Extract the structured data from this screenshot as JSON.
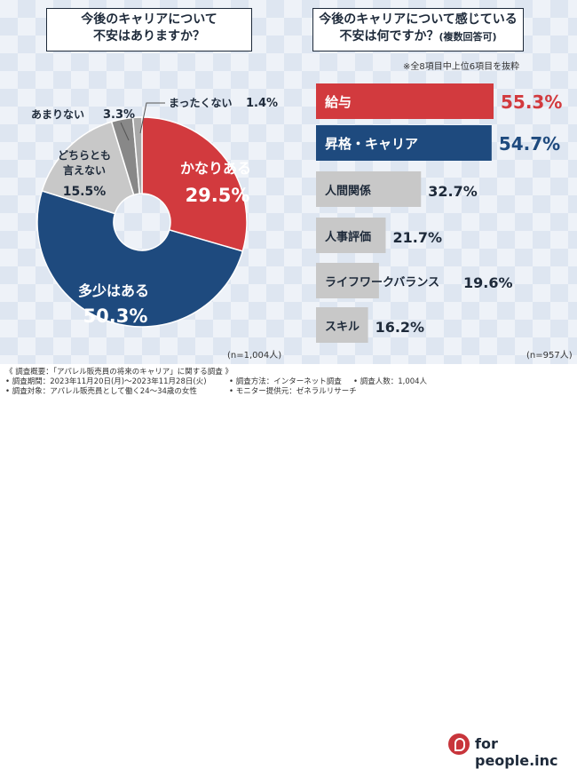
{
  "left_title": [
    "今後のキャリアについて",
    "不安はありますか？"
  ],
  "right_title_line1": "今後のキャリアについて感じている",
  "right_title_line2": "不安は何ですか？",
  "right_title_suffix": "(複数回答可)",
  "right_note": "※全8項目中上位6項目を抜粋",
  "left_n": "(n=1,004人)",
  "right_n": "(n=957人)",
  "colors": {
    "red": "#d23a3e",
    "navy": "#1e4a7e",
    "gray": "#c8c8c8",
    "dark_gray": "#888888",
    "mid_gray": "#a9a9a9"
  },
  "chart_data": [
    {
      "type": "pie",
      "title": "今後のキャリアについて不安はありますか？",
      "slices": [
        {
          "label": "かなりある",
          "value": 29.5,
          "display": "29.5%"
        },
        {
          "label": "多少はある",
          "value": 50.3,
          "display": "50.3%"
        },
        {
          "label": "どちらとも言えない",
          "value": 15.5,
          "display": "15.5%"
        },
        {
          "label": "あまりない",
          "value": 3.3,
          "display": "3.3%"
        },
        {
          "label": "まったくない",
          "value": 1.4,
          "display": "1.4%"
        }
      ]
    },
    {
      "type": "bar",
      "title": "今後のキャリアについて感じている不安は何ですか？(複数回答可)",
      "categories": [
        "給与",
        "昇格・キャリア",
        "人間関係",
        "人事評価",
        "ライフワークバランス",
        "スキル"
      ],
      "values": [
        55.3,
        54.7,
        32.7,
        21.7,
        19.6,
        16.2
      ],
      "display": [
        "55.3%",
        "54.7%",
        "32.7%",
        "21.7%",
        "19.6%",
        "16.2%"
      ]
    }
  ],
  "footer": {
    "summary": "《 調査概要：「アパレル販売員の将来のキャリア」に関する調査 》",
    "period": "• 調査期間：2023年11月20日(月)〜2023年11月28日(火)",
    "target": "• 調査対象：アパレル販売員として働く24〜34歳の女性",
    "method": "• 調査方法：インターネット調査",
    "monitor": "• モニター提供元：ゼネラルリサーチ",
    "count": "• 調査人数：1,004人",
    "brand": "for people.inc"
  }
}
